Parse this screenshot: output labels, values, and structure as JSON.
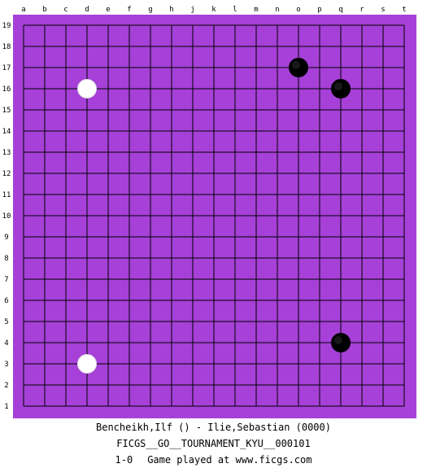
{
  "board": {
    "size": 19,
    "colors": {
      "board": "#a640d8",
      "grid": "#000000",
      "black_stone": "#000000",
      "white_stone": "#ffffff"
    },
    "columns": [
      "a",
      "b",
      "c",
      "d",
      "e",
      "f",
      "g",
      "h",
      "j",
      "k",
      "l",
      "m",
      "n",
      "o",
      "p",
      "q",
      "r",
      "s",
      "t"
    ],
    "rows": [
      "19",
      "18",
      "17",
      "16",
      "15",
      "14",
      "13",
      "12",
      "11",
      "10",
      "9",
      "8",
      "7",
      "6",
      "5",
      "4",
      "3",
      "2",
      "1"
    ],
    "stones": [
      {
        "color": "black",
        "point": "o17"
      },
      {
        "color": "black",
        "point": "q16"
      },
      {
        "color": "black",
        "point": "q4"
      },
      {
        "color": "white",
        "point": "d16"
      },
      {
        "color": "white",
        "point": "d3"
      }
    ]
  },
  "game": {
    "players": "Bencheikh,Ilf () - Ilie,Sebastian (0000)",
    "event": "FICGS__GO__TOURNAMENT_KYU__000101",
    "result": "1-0",
    "site_note": "Game played at www.ficgs.com"
  }
}
